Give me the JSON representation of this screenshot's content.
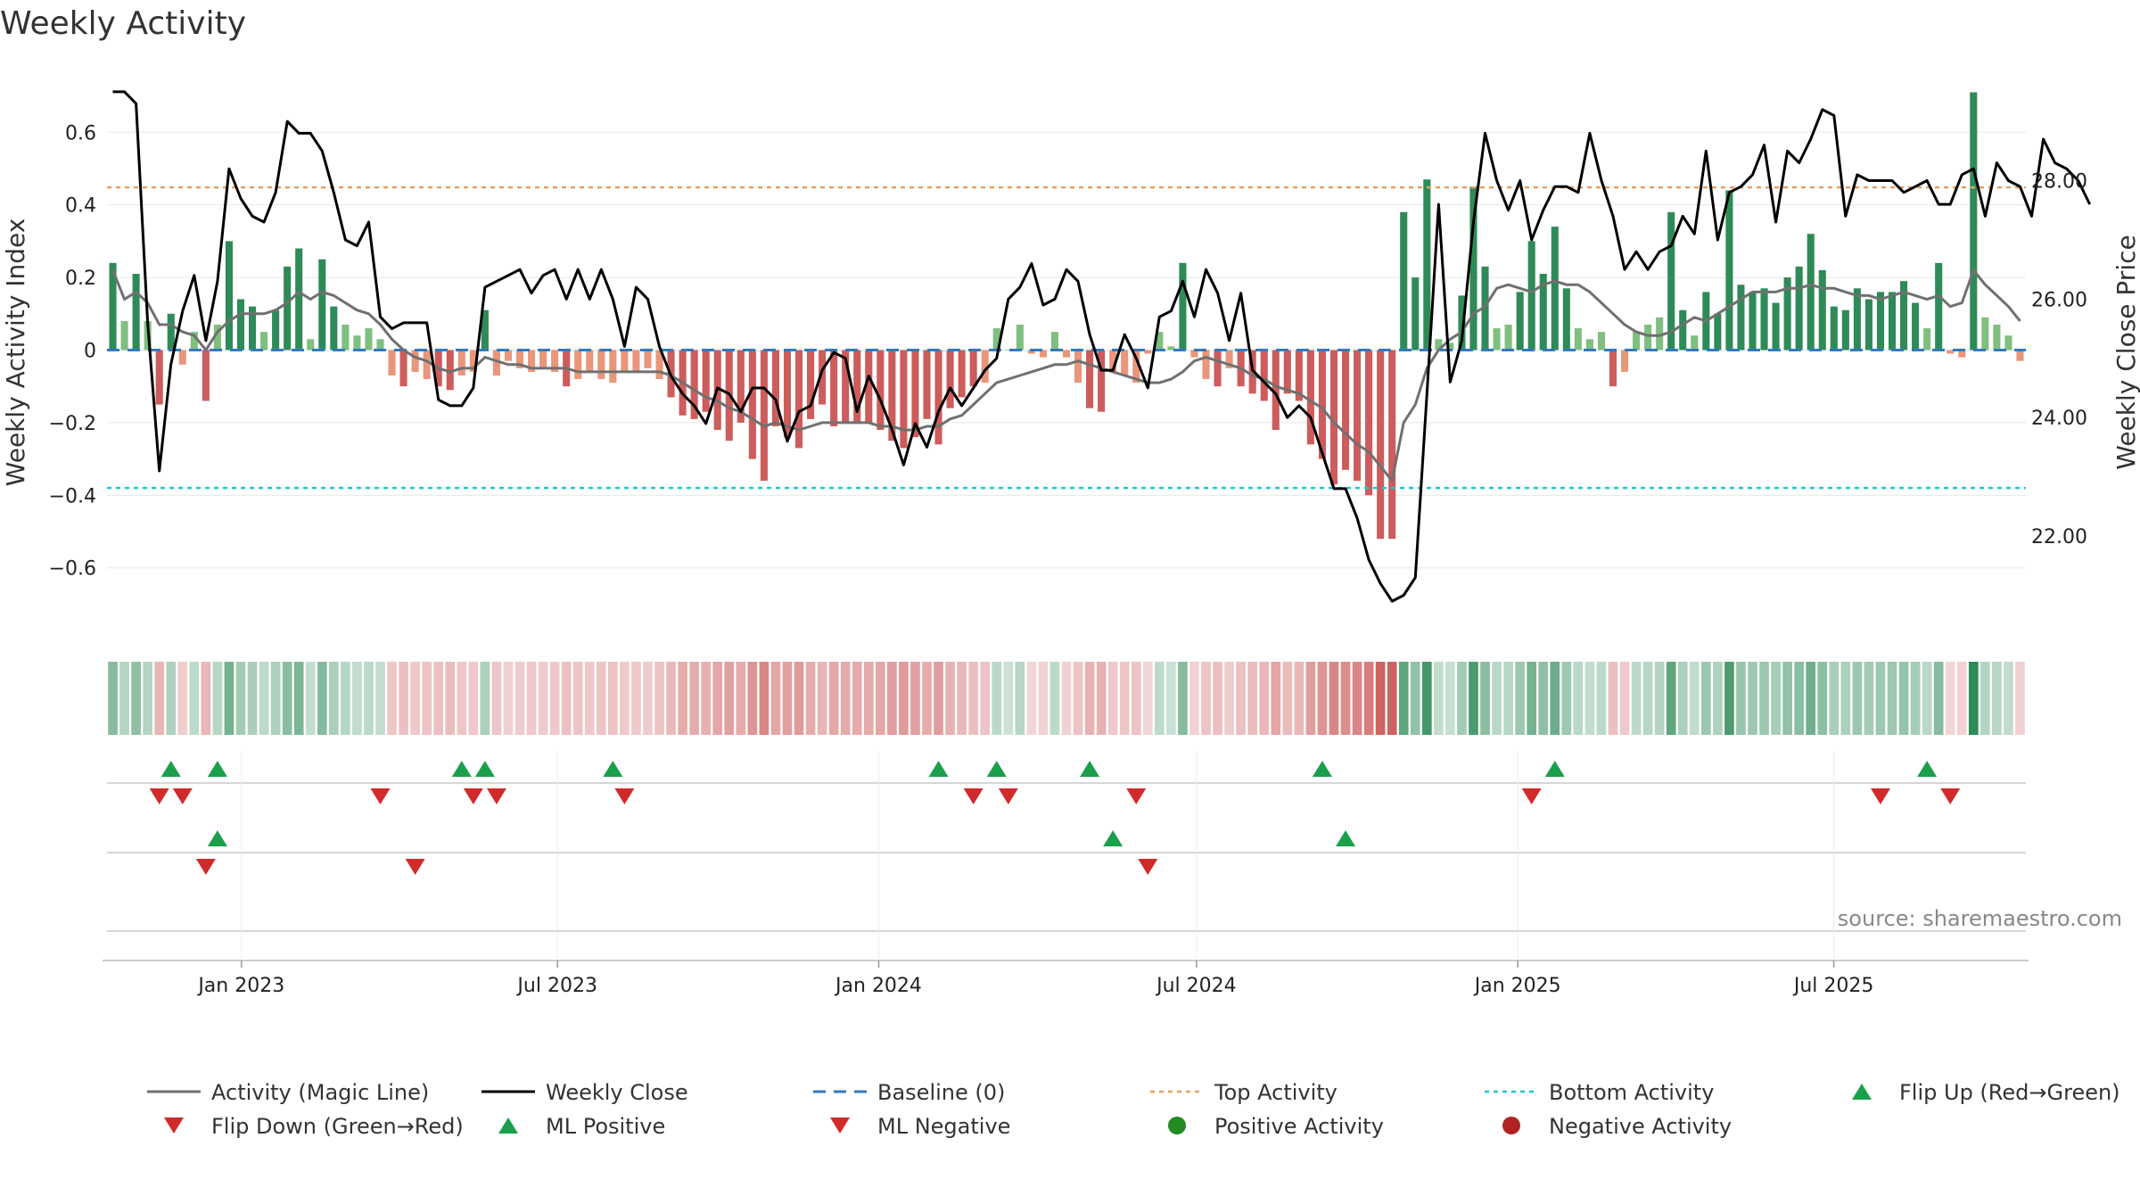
{
  "chart_data": {
    "type": "bar",
    "title": "Weekly Activity",
    "ylabel": "Weekly Activity Index",
    "y2label": "Weekly Close Price",
    "ylim": [
      -0.78,
      0.78
    ],
    "y2lim": [
      20.36,
      29.92
    ],
    "yticks": [
      -0.6,
      -0.4,
      -0.2,
      0,
      0.2,
      0.4,
      0.6
    ],
    "ytick_labels": [
      "−0.6",
      "−0.4",
      "−0.2",
      "0",
      "0.2",
      "0.4",
      "0.6"
    ],
    "y2ticks": [
      22,
      24,
      26,
      28
    ],
    "y2tick_labels": [
      "22.00",
      "24.00",
      "26.00",
      "28.00"
    ],
    "x_start": "2022-10-16",
    "x_end": "2025-10-19",
    "xticks": [
      {
        "date": "2023-01-01",
        "label": "Jan 2023"
      },
      {
        "date": "2023-07-01",
        "label": "Jul 2023"
      },
      {
        "date": "2024-01-01",
        "label": "Jan 2024"
      },
      {
        "date": "2024-07-01",
        "label": "Jul 2024"
      },
      {
        "date": "2025-01-01",
        "label": "Jan 2025"
      },
      {
        "date": "2025-07-01",
        "label": "Jul 2025"
      }
    ],
    "top_activity": 0.448,
    "bottom_activity": -0.38,
    "baseline": 0,
    "activity": [
      0.24,
      0.08,
      0.21,
      0.08,
      -0.15,
      0.1,
      -0.04,
      0.05,
      -0.14,
      0.07,
      0.3,
      0.14,
      0.12,
      0.05,
      0.11,
      0.23,
      0.28,
      0.03,
      0.25,
      0.12,
      0.07,
      0.04,
      0.06,
      0.03,
      -0.07,
      -0.1,
      -0.06,
      -0.08,
      -0.1,
      -0.11,
      -0.07,
      -0.06,
      0.11,
      -0.07,
      -0.03,
      -0.05,
      -0.06,
      -0.05,
      -0.06,
      -0.1,
      -0.08,
      -0.06,
      -0.08,
      -0.09,
      -0.06,
      -0.06,
      -0.05,
      -0.08,
      -0.13,
      -0.18,
      -0.19,
      -0.17,
      -0.22,
      -0.25,
      -0.2,
      -0.3,
      -0.36,
      -0.21,
      -0.24,
      -0.27,
      -0.19,
      -0.15,
      -0.21,
      -0.2,
      -0.2,
      -0.2,
      -0.22,
      -0.25,
      -0.27,
      -0.24,
      -0.19,
      -0.26,
      -0.16,
      -0.13,
      -0.1,
      -0.09,
      0.06,
      0.0,
      0.07,
      -0.01,
      -0.02,
      0.05,
      -0.02,
      -0.09,
      -0.16,
      -0.17,
      -0.06,
      -0.07,
      -0.09,
      -0.01,
      0.05,
      0.01,
      0.24,
      -0.02,
      -0.08,
      -0.1,
      -0.05,
      -0.1,
      -0.12,
      -0.14,
      -0.22,
      -0.12,
      -0.14,
      -0.26,
      -0.3,
      -0.37,
      -0.33,
      -0.36,
      -0.4,
      -0.52,
      -0.52,
      0.38,
      0.2,
      0.47,
      0.03,
      0.02,
      0.15,
      0.45,
      0.23,
      0.06,
      0.07,
      0.16,
      0.3,
      0.21,
      0.34,
      0.17,
      0.06,
      0.03,
      0.05,
      -0.1,
      -0.06,
      0.05,
      0.07,
      0.09,
      0.38,
      0.11,
      0.04,
      0.16,
      0.1,
      0.44,
      0.18,
      0.16,
      0.17,
      0.13,
      0.2,
      0.23,
      0.32,
      0.22,
      0.12,
      0.11,
      0.17,
      0.14,
      0.16,
      0.16,
      0.19,
      0.13,
      0.06,
      0.24,
      -0.01,
      -0.02,
      0.71,
      0.09,
      0.07,
      0.04,
      -0.03
    ],
    "magic_line": [
      0.22,
      0.14,
      0.16,
      0.13,
      0.07,
      0.07,
      0.05,
      0.04,
      0.0,
      0.05,
      0.08,
      0.1,
      0.1,
      0.1,
      0.11,
      0.13,
      0.16,
      0.14,
      0.16,
      0.15,
      0.13,
      0.11,
      0.1,
      0.07,
      0.03,
      0.0,
      -0.02,
      -0.03,
      -0.05,
      -0.06,
      -0.05,
      -0.05,
      -0.02,
      -0.03,
      -0.04,
      -0.04,
      -0.05,
      -0.05,
      -0.05,
      -0.05,
      -0.06,
      -0.06,
      -0.06,
      -0.06,
      -0.06,
      -0.06,
      -0.06,
      -0.06,
      -0.07,
      -0.09,
      -0.11,
      -0.13,
      -0.14,
      -0.16,
      -0.17,
      -0.19,
      -0.21,
      -0.2,
      -0.21,
      -0.22,
      -0.21,
      -0.2,
      -0.2,
      -0.2,
      -0.2,
      -0.2,
      -0.21,
      -0.21,
      -0.22,
      -0.22,
      -0.21,
      -0.21,
      -0.19,
      -0.18,
      -0.15,
      -0.12,
      -0.09,
      -0.08,
      -0.07,
      -0.06,
      -0.05,
      -0.04,
      -0.04,
      -0.03,
      -0.04,
      -0.05,
      -0.06,
      -0.07,
      -0.08,
      -0.09,
      -0.09,
      -0.08,
      -0.06,
      -0.03,
      -0.02,
      -0.03,
      -0.04,
      -0.05,
      -0.07,
      -0.08,
      -0.1,
      -0.11,
      -0.12,
      -0.14,
      -0.16,
      -0.2,
      -0.23,
      -0.26,
      -0.28,
      -0.32,
      -0.36,
      -0.2,
      -0.15,
      -0.05,
      0.0,
      0.03,
      0.05,
      0.1,
      0.12,
      0.17,
      0.18,
      0.17,
      0.16,
      0.18,
      0.19,
      0.18,
      0.18,
      0.16,
      0.13,
      0.1,
      0.07,
      0.05,
      0.04,
      0.04,
      0.05,
      0.07,
      0.09,
      0.08,
      0.1,
      0.12,
      0.14,
      0.16,
      0.16,
      0.16,
      0.17,
      0.17,
      0.18,
      0.17,
      0.17,
      0.16,
      0.15,
      0.15,
      0.14,
      0.15,
      0.16,
      0.15,
      0.14,
      0.15,
      0.12,
      0.13,
      0.22,
      0.18,
      0.15,
      0.12,
      0.08
    ],
    "weekly_close": [
      29.5,
      29.5,
      29.3,
      25.6,
      23.1,
      24.9,
      25.8,
      26.4,
      25.3,
      26.3,
      28.2,
      27.7,
      27.4,
      27.3,
      27.8,
      29.0,
      28.8,
      28.8,
      28.5,
      27.8,
      27.0,
      26.9,
      27.3,
      25.7,
      25.5,
      25.6,
      25.6,
      25.6,
      24.3,
      24.2,
      24.2,
      24.5,
      26.2,
      26.3,
      26.4,
      26.5,
      26.1,
      26.4,
      26.5,
      26.0,
      26.5,
      26.0,
      26.5,
      26.0,
      25.2,
      26.2,
      26.0,
      25.2,
      24.7,
      24.4,
      24.2,
      23.9,
      24.5,
      24.4,
      24.1,
      24.5,
      24.5,
      24.3,
      23.6,
      24.1,
      24.2,
      24.8,
      25.1,
      25.0,
      24.1,
      24.7,
      24.3,
      23.8,
      23.2,
      23.9,
      23.5,
      24.1,
      24.5,
      24.2,
      24.5,
      24.8,
      25.0,
      26.0,
      26.2,
      26.6,
      25.9,
      26.0,
      26.5,
      26.3,
      25.4,
      24.8,
      24.8,
      25.4,
      25.0,
      24.5,
      25.7,
      25.8,
      26.3,
      25.7,
      26.5,
      26.1,
      25.3,
      26.1,
      24.8,
      24.6,
      24.4,
      24.0,
      24.2,
      24.0,
      23.4,
      22.8,
      22.8,
      22.3,
      21.6,
      21.2,
      20.9,
      21.0,
      21.3,
      24.4,
      27.6,
      24.6,
      25.3,
      27.3,
      28.8,
      28.0,
      27.5,
      28.0,
      27.0,
      27.5,
      27.9,
      27.9,
      27.8,
      28.8,
      28.0,
      27.4,
      26.5,
      26.8,
      26.5,
      26.8,
      26.9,
      27.4,
      27.1,
      28.5,
      27.0,
      27.8,
      27.9,
      28.1,
      28.6,
      27.3,
      28.5,
      28.3,
      28.7,
      29.2,
      29.1,
      27.4,
      28.1,
      28.0,
      28.0,
      28.0,
      27.8,
      27.9,
      28.0,
      27.6,
      27.6,
      28.1,
      28.2,
      27.4,
      28.3,
      28.0,
      27.9,
      27.4,
      28.7,
      28.3,
      28.2,
      28.0,
      27.6
    ],
    "ml_positive_weeks": [
      5,
      9,
      30,
      32,
      43,
      71,
      76,
      84,
      104,
      124,
      156
    ],
    "ml_negative_weeks": [
      4,
      6,
      23,
      31,
      33,
      44,
      74,
      77,
      88,
      122,
      152,
      158
    ],
    "flip_up_weeks": [
      9,
      86,
      106
    ],
    "flip_down_weeks": [
      8,
      26,
      89
    ],
    "legend": [
      {
        "label": "Activity (Magic Line)",
        "marker": "line",
        "color": "#707070"
      },
      {
        "label": "Weekly Close",
        "marker": "line",
        "color": "#000000"
      },
      {
        "label": "Baseline (0)",
        "marker": "dash",
        "color": "#2f7bbf"
      },
      {
        "label": "Top Activity",
        "marker": "dot",
        "color": "#e8a060"
      },
      {
        "label": "Bottom Activity",
        "marker": "dot",
        "color": "#19c8d1"
      },
      {
        "label": "Flip Up (Red→Green)",
        "marker": "tri-up",
        "color": "#1aa04a"
      },
      {
        "label": "Flip Down (Green→Red)",
        "marker": "tri-down",
        "color": "#d12a2a"
      },
      {
        "label": "ML Positive",
        "marker": "tri-up",
        "color": "#1aa04a"
      },
      {
        "label": "ML Negative",
        "marker": "tri-down",
        "color": "#d12a2a"
      },
      {
        "label": "Positive Activity",
        "marker": "circle",
        "color": "#228b22"
      },
      {
        "label": "Negative Activity",
        "marker": "circle",
        "color": "#b22222"
      }
    ],
    "source": "source: sharemaestro.com"
  },
  "colors": {
    "pos_strong": "#2e8b57",
    "pos_light": "#7fbf7f",
    "neg_strong": "#cd5c5c",
    "neg_light": "#e9967a",
    "magic_line": "#707070",
    "close": "#000000",
    "grid": "#e8e8e8"
  }
}
